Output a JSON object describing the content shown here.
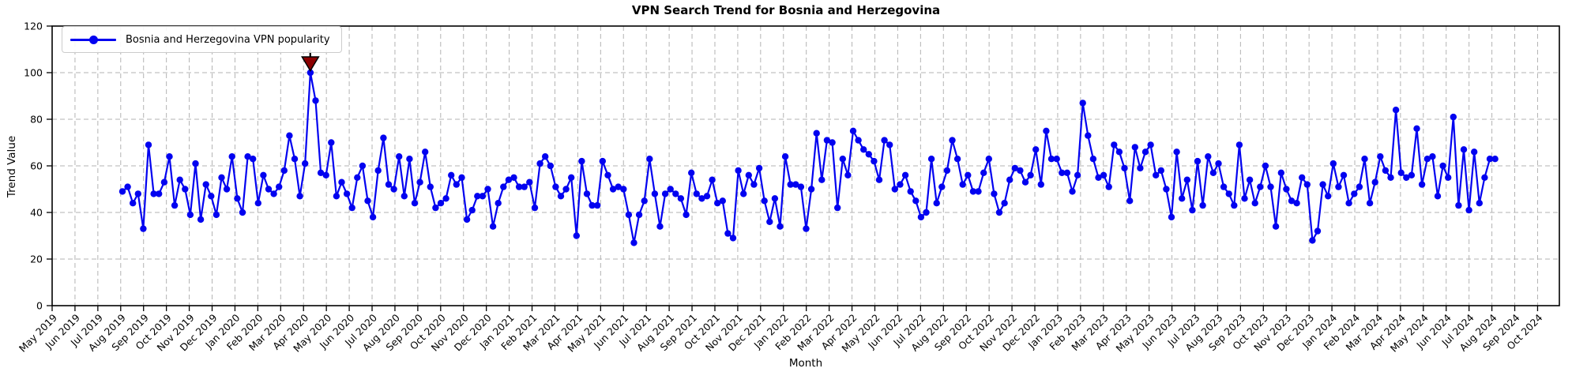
{
  "chart_data": {
    "type": "line",
    "title": "VPN Search Trend for Bosnia and Herzegovina",
    "xlabel": "Month",
    "ylabel": "Trend Value",
    "legend_position": "upper left",
    "grid": true,
    "ylim": [
      0,
      120
    ],
    "y_ticks": [
      0,
      20,
      40,
      60,
      80,
      100,
      120
    ],
    "x_tick_labels": [
      "May 2019",
      "Jun 2019",
      "Jul 2019",
      "Aug 2019",
      "Sep 2019",
      "Oct 2019",
      "Nov 2019",
      "Dec 2019",
      "Jan 2020",
      "Feb 2020",
      "Mar 2020",
      "Apr 2020",
      "May 2020",
      "Jun 2020",
      "Jul 2020",
      "Aug 2020",
      "Sep 2020",
      "Oct 2020",
      "Nov 2020",
      "Dec 2020",
      "Jan 2021",
      "Feb 2021",
      "Mar 2021",
      "Apr 2021",
      "May 2021",
      "Jun 2021",
      "Jul 2021",
      "Aug 2021",
      "Sep 2021",
      "Oct 2021",
      "Nov 2021",
      "Dec 2021",
      "Jan 2022",
      "Feb 2022",
      "Mar 2022",
      "Apr 2022",
      "May 2022",
      "Jun 2022",
      "Jul 2022",
      "Aug 2022",
      "Sep 2022",
      "Oct 2022",
      "Nov 2022",
      "Dec 2022",
      "Jan 2023",
      "Feb 2023",
      "Mar 2023",
      "Apr 2023",
      "May 2023",
      "Jun 2023",
      "Jul 2023",
      "Aug 2023",
      "Sep 2023",
      "Oct 2023",
      "Nov 2023",
      "Dec 2023",
      "Jan 2024",
      "Feb 2024",
      "Mar 2024",
      "Apr 2024",
      "May 2024",
      "Jun 2024",
      "Jul 2024",
      "Aug 2024",
      "Sep 2024",
      "Oct 2024"
    ],
    "x_frequency": "weekly",
    "first_point_month": "Aug 2019",
    "last_point_month": "Aug 2024",
    "series": [
      {
        "name": "Bosnia and Herzegovina VPN popularity",
        "values": [
          49,
          51,
          44,
          48,
          33,
          69,
          48,
          48,
          53,
          64,
          43,
          54,
          50,
          39,
          61,
          37,
          52,
          47,
          39,
          55,
          50,
          64,
          46,
          40,
          64,
          63,
          44,
          56,
          50,
          48,
          51,
          58,
          73,
          63,
          47,
          61,
          100,
          88,
          57,
          56,
          70,
          47,
          53,
          48,
          42,
          55,
          60,
          45,
          38,
          58,
          72,
          52,
          50,
          64,
          47,
          63,
          44,
          53,
          66,
          51,
          42,
          44,
          46,
          56,
          52,
          55,
          37,
          41,
          47,
          47,
          50,
          34,
          44,
          51,
          54,
          55,
          51,
          51,
          53,
          42,
          61,
          64,
          60,
          51,
          47,
          50,
          55,
          30,
          62,
          48,
          43,
          43,
          62,
          56,
          50,
          51,
          50,
          39,
          27,
          39,
          45,
          63,
          48,
          34,
          48,
          50,
          48,
          46,
          39,
          57,
          48,
          46,
          47,
          54,
          44,
          45,
          31,
          29,
          58,
          48,
          56,
          52,
          59,
          45,
          36,
          46,
          34,
          64,
          52,
          52,
          51,
          33,
          50,
          74,
          54,
          71,
          70,
          42,
          63,
          56,
          75,
          71,
          67,
          65,
          62,
          54,
          71,
          69,
          50,
          52,
          56,
          49,
          45,
          38,
          40,
          63,
          44,
          51,
          58,
          71,
          63,
          52,
          56,
          49,
          49,
          57,
          63,
          48,
          40,
          44,
          54,
          59,
          58,
          53,
          56,
          67,
          52,
          75,
          63,
          63,
          57,
          57,
          49,
          56,
          87,
          73,
          63,
          55,
          56,
          51,
          69,
          66,
          59,
          45,
          68,
          59,
          66,
          69,
          56,
          58,
          50,
          38,
          66,
          46,
          54,
          41,
          62,
          43,
          64,
          57,
          61,
          51,
          48,
          43,
          69,
          46,
          54,
          44,
          51,
          60,
          51,
          34,
          57,
          50,
          45,
          44,
          55,
          52,
          28,
          32,
          52,
          47,
          61,
          51,
          56,
          44,
          48,
          51,
          63,
          44,
          53,
          64,
          58,
          55,
          84,
          57,
          55,
          56,
          76,
          52,
          63,
          64,
          47,
          60,
          55,
          81,
          43,
          67,
          41,
          66,
          44,
          55,
          63,
          63
        ]
      }
    ],
    "annotation": {
      "marker": "triangle-down",
      "fill_color": "#8b0000",
      "edge_color": "#000000",
      "point_index": 36,
      "point_value": 100,
      "partial_hidden_text": "1"
    },
    "colors": {
      "line": "#0202f0",
      "marker": "#0202f0",
      "grid": "#b3b3b3",
      "axis": "#000000",
      "legend_border": "#cccccc",
      "background": "#ffffff"
    }
  }
}
